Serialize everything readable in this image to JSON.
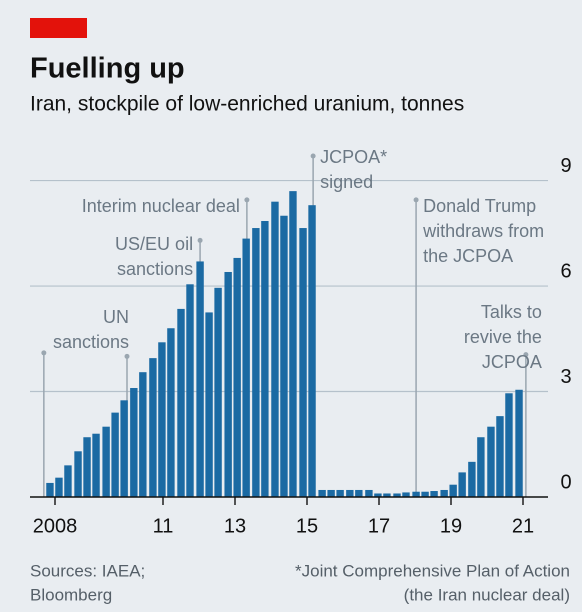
{
  "chart_data": {
    "type": "bar",
    "title": "Fuelling up",
    "subtitle": "Iran, stockpile of low-enriched uranium, tonnes",
    "x": [
      2007.86,
      2008.11,
      2008.36,
      2008.64,
      2008.89,
      2009.14,
      2009.42,
      2009.67,
      2009.92,
      2010.19,
      2010.44,
      2010.72,
      2010.97,
      2011.22,
      2011.5,
      2011.75,
      2012.03,
      2012.28,
      2012.53,
      2012.81,
      2013.06,
      2013.31,
      2013.58,
      2013.83,
      2014.11,
      2014.36,
      2014.61,
      2014.89,
      2015.14,
      2015.42,
      2015.67,
      2015.92,
      2016.19,
      2016.44,
      2016.72,
      2016.97,
      2017.22,
      2017.5,
      2017.75,
      2018.03,
      2018.28,
      2018.53,
      2018.81,
      2019.06,
      2019.31,
      2019.58,
      2019.83,
      2020.11,
      2020.36,
      2020.61,
      2020.89
    ],
    "values": [
      0.4,
      0.55,
      0.9,
      1.3,
      1.7,
      1.8,
      2.0,
      2.4,
      2.75,
      3.1,
      3.55,
      3.95,
      4.4,
      4.8,
      5.35,
      6.05,
      6.7,
      5.25,
      5.95,
      6.4,
      6.8,
      7.35,
      7.65,
      7.85,
      8.4,
      8.0,
      8.7,
      7.65,
      8.3,
      0.2,
      0.2,
      0.2,
      0.2,
      0.2,
      0.2,
      0.1,
      0.1,
      0.1,
      0.13,
      0.15,
      0.15,
      0.17,
      0.2,
      0.35,
      0.7,
      1.0,
      1.7,
      2.0,
      2.3,
      2.95,
      3.05
    ],
    "color": "#1b6aa3",
    "xlim": [
      2007.5,
      2022
    ],
    "xticks": [
      {
        "value": 2008,
        "label": "2008"
      },
      {
        "value": 2011,
        "label": "11"
      },
      {
        "value": 2013,
        "label": "13"
      },
      {
        "value": 2015,
        "label": "15"
      },
      {
        "value": 2017,
        "label": "17"
      },
      {
        "value": 2019,
        "label": "19"
      },
      {
        "value": 2021,
        "label": "21"
      }
    ],
    "ylim": [
      0,
      9.5
    ],
    "yticks": [
      0,
      3,
      6,
      9
    ],
    "grid": true,
    "annotations": [
      {
        "x": 2007.69,
        "y": 4.1
      },
      {
        "text": [
          "UN",
          "sanctions"
        ],
        "x": 2010.0,
        "y": 4.0
      },
      {
        "text": [
          "US/EU oil",
          "sanctions"
        ],
        "x": 2012.03,
        "y": 7.3
      },
      {
        "text": [
          "Interim nuclear deal"
        ],
        "x": 2013.33,
        "y": 8.45
      },
      {
        "text": [
          "JCPOA*",
          "signed"
        ],
        "x": 2015.17,
        "y": 9.7
      },
      {
        "text": [
          "Donald Trump",
          "withdraws from",
          "the JCPOA"
        ],
        "x": 2018.03,
        "y": 8.45
      },
      {
        "text": [
          "Talks to",
          "revive the",
          "JCPOA"
        ],
        "x": 2021.08,
        "y": 4.05
      }
    ],
    "source": [
      "Sources: IAEA;",
      "Bloomberg"
    ],
    "footnote": [
      "*Joint Comprehensive Plan of Action",
      "(the Iran nuclear deal)"
    ]
  }
}
